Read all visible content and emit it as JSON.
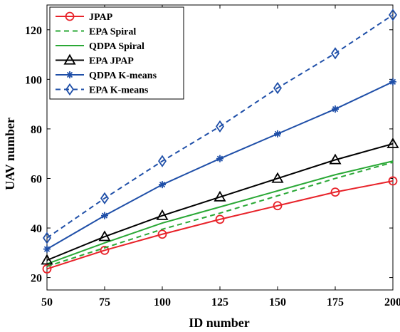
{
  "chart_data": {
    "type": "line",
    "xlabel": "ID number",
    "ylabel": "UAV number",
    "xlim": [
      50,
      200
    ],
    "ylim": [
      15,
      130
    ],
    "x_ticks": [
      50,
      75,
      100,
      125,
      150,
      175,
      200
    ],
    "y_ticks": [
      20,
      40,
      60,
      80,
      100,
      120
    ],
    "x_tick_labels": [
      "50",
      "75",
      "100",
      "125",
      "150",
      "175",
      "200"
    ],
    "y_tick_labels": [
      "20",
      "40",
      "60",
      "80",
      "100",
      "120"
    ],
    "x": [
      50,
      75,
      100,
      125,
      150,
      175,
      200
    ],
    "grid": false,
    "legend_position": "top-left",
    "series": [
      {
        "name": "JPAP",
        "values": [
          23.5,
          31,
          37.5,
          43.5,
          49,
          54.5,
          59
        ],
        "color": "#e8232a",
        "style": "solid",
        "marker": "circle"
      },
      {
        "name": "EPA Spiral",
        "values": [
          24.5,
          32,
          39.5,
          46,
          53,
          60,
          66.5
        ],
        "color": "#2aa836",
        "style": "dashed",
        "marker": "none"
      },
      {
        "name": "QDPA Spiral",
        "values": [
          25.5,
          34,
          42,
          48.5,
          55,
          61.5,
          67
        ],
        "color": "#2aa836",
        "style": "solid",
        "marker": "none"
      },
      {
        "name": "EPA JPAP",
        "values": [
          27,
          36.5,
          45,
          52.5,
          60,
          67.5,
          74
        ],
        "color": "#000000",
        "style": "solid",
        "marker": "triangle"
      },
      {
        "name": "QDPA K-means",
        "values": [
          31.5,
          45,
          57.5,
          68,
          78,
          88,
          99
        ],
        "color": "#1f4fa8",
        "style": "solid",
        "marker": "star"
      },
      {
        "name": "EPA K-means",
        "values": [
          36,
          52,
          67,
          81,
          96.5,
          110.5,
          126
        ],
        "color": "#1f4fa8",
        "style": "dashed",
        "marker": "diamond"
      }
    ]
  }
}
